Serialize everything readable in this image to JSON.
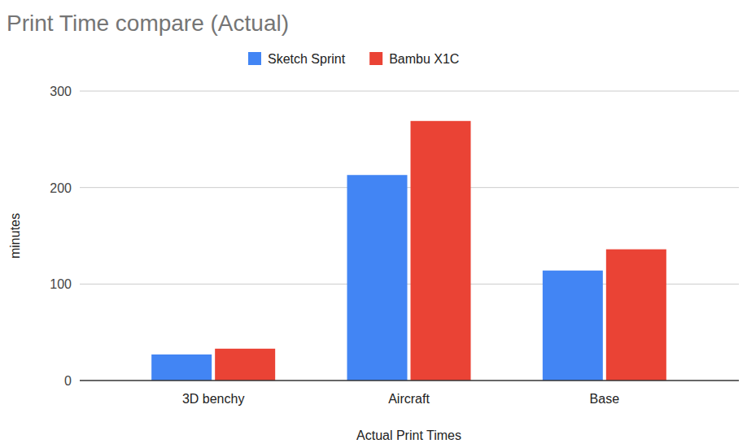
{
  "chart_data": {
    "type": "bar",
    "title": "Print Time compare (Actual)",
    "x_label": "Actual Print Times",
    "y_label": "minutes",
    "categories": [
      "3D benchy",
      "Aircraft",
      "Base"
    ],
    "series": [
      {
        "name": "Sketch Sprint",
        "color": "#4285f4",
        "values": [
          27,
          213,
          114
        ]
      },
      {
        "name": "Bambu X1C",
        "color": "#ea4335",
        "values": [
          33,
          269,
          136
        ]
      }
    ],
    "ylim": [
      0,
      300
    ],
    "yticks": [
      0,
      100,
      200,
      300
    ],
    "grid": true,
    "legend": "top"
  }
}
